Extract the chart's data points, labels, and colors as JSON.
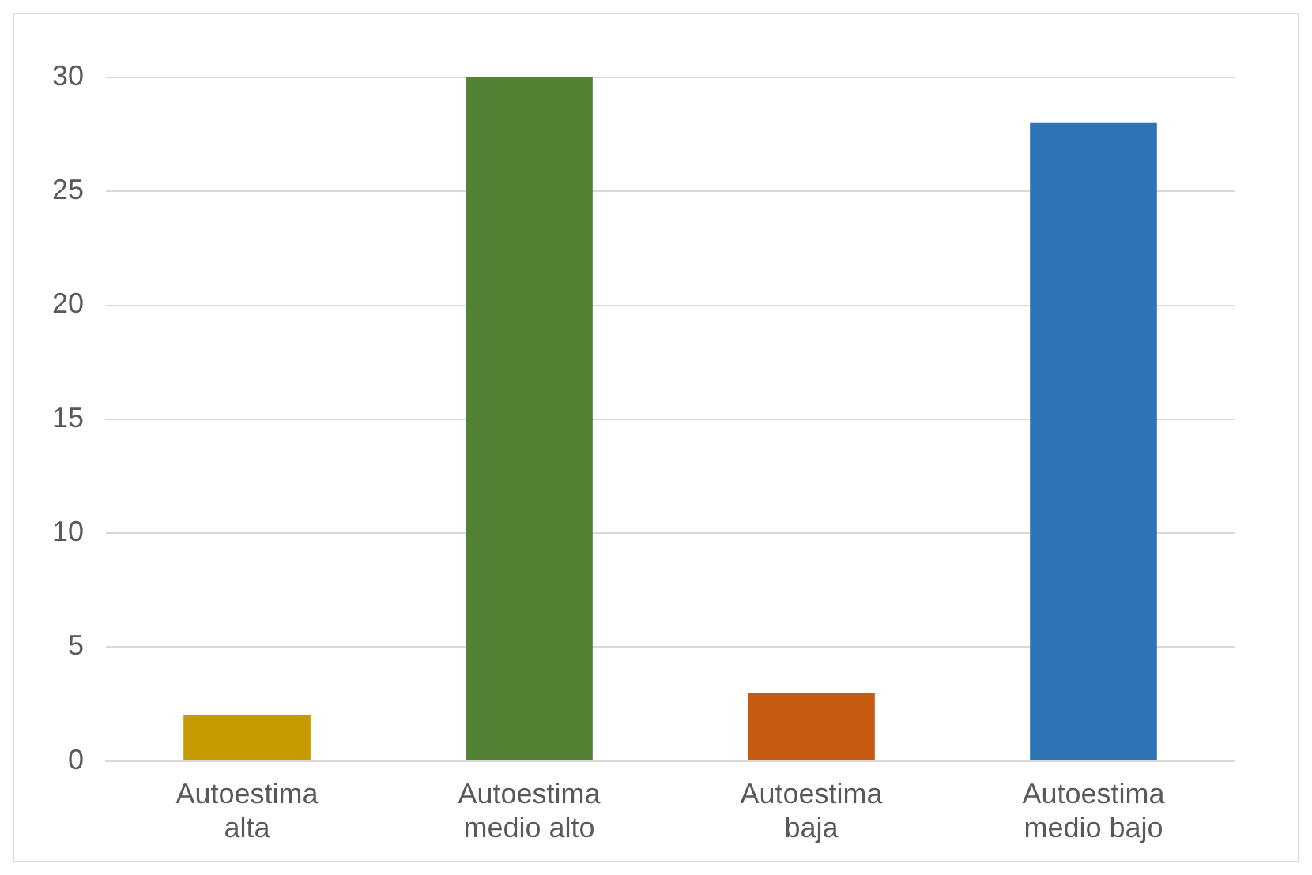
{
  "chart_data": {
    "type": "bar",
    "categories": [
      [
        "Autoestima",
        "alta"
      ],
      [
        "Autoestima",
        "medio alto"
      ],
      [
        "Autoestima",
        "baja"
      ],
      [
        "Autoestima",
        "medio bajo"
      ]
    ],
    "values": [
      2,
      30,
      3,
      28
    ],
    "colors": [
      "#c49a00",
      "#548235",
      "#c55a11",
      "#2e75b6"
    ],
    "ylim": [
      0,
      30
    ],
    "yticks": [
      0,
      5,
      10,
      15,
      20,
      25,
      30
    ],
    "grid": "y",
    "legend": false
  }
}
